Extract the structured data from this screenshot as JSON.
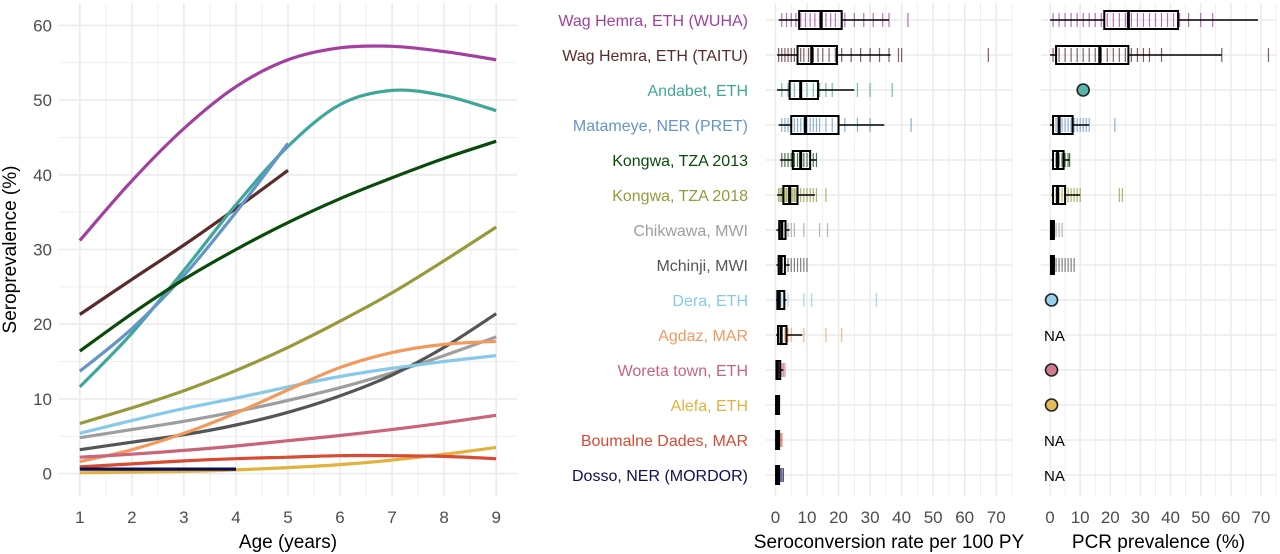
{
  "chart_data": [
    {
      "type": "line",
      "xlabel": "Age (years)",
      "ylabel": "Seroprevalence (%)",
      "xlim": [
        0.6,
        9.4
      ],
      "ylim": [
        -3,
        63
      ],
      "xticks": [
        "1",
        "2",
        "3",
        "4",
        "5",
        "6",
        "7",
        "8",
        "9"
      ],
      "yticks": [
        "0",
        "10",
        "20",
        "30",
        "40",
        "50",
        "60"
      ],
      "grid": true,
      "series": [
        {
          "name": "Wag Hemra, ETH (WUHA)",
          "color": "#a23fa0",
          "x": [
            1,
            2,
            3,
            4,
            5,
            6,
            7,
            8,
            9
          ],
          "y": [
            31.2,
            39.2,
            46.2,
            51.8,
            55.4,
            57.0,
            57.2,
            56.5,
            55.4
          ]
        },
        {
          "name": "Wag Hemra, ETH (TAITU)",
          "color": "#5b2a2a",
          "x": [
            1,
            2,
            3,
            4,
            5
          ],
          "y": [
            21.3,
            26.0,
            30.6,
            35.5,
            40.6
          ]
        },
        {
          "name": "Andabet, ETH",
          "color": "#3fa79a",
          "x": [
            1,
            2,
            3,
            4,
            5,
            6,
            7,
            8,
            9
          ],
          "y": [
            11.6,
            18.8,
            27.2,
            36.0,
            43.8,
            49.4,
            51.3,
            50.6,
            48.6
          ]
        },
        {
          "name": "Matameye, NER (PRET)",
          "color": "#6495c8",
          "x": [
            1,
            2,
            3,
            4,
            5
          ],
          "y": [
            13.7,
            19.4,
            26.5,
            35.0,
            44.2
          ]
        },
        {
          "name": "Kongwa, TZA 2013",
          "color": "#0a4a0a",
          "x": [
            1,
            2,
            3,
            4,
            5,
            6,
            7,
            8,
            9
          ],
          "y": [
            16.4,
            21.4,
            26.0,
            30.0,
            33.6,
            36.8,
            39.6,
            42.2,
            44.5
          ]
        },
        {
          "name": "Kongwa, TZA 2018",
          "color": "#97993a",
          "x": [
            1,
            2,
            3,
            4,
            5,
            6,
            7,
            8,
            9
          ],
          "y": [
            6.7,
            8.8,
            11.1,
            13.8,
            16.9,
            20.4,
            24.2,
            28.5,
            33.0
          ]
        },
        {
          "name": "Chikwawa, MWI",
          "color": "#9e9e9e",
          "x": [
            1,
            2,
            3,
            4,
            5,
            6,
            7,
            8,
            9
          ],
          "y": [
            4.8,
            5.9,
            7.0,
            8.3,
            9.8,
            11.5,
            13.5,
            15.8,
            18.3
          ]
        },
        {
          "name": "Mchinji, MWI",
          "color": "#555555",
          "x": [
            1,
            2,
            3,
            4,
            5,
            6,
            7,
            8,
            9
          ],
          "y": [
            3.2,
            4.2,
            5.2,
            6.5,
            8.2,
            10.4,
            13.2,
            16.9,
            21.4
          ]
        },
        {
          "name": "Dera, ETH",
          "color": "#87c9e9",
          "x": [
            1,
            2,
            3,
            4,
            5,
            6,
            7,
            8,
            9
          ],
          "y": [
            5.4,
            7.1,
            8.7,
            10.1,
            11.6,
            13.0,
            14.1,
            15.0,
            15.8
          ]
        },
        {
          "name": "Agdaz, MAR",
          "color": "#f2995e",
          "x": [
            1,
            2,
            3,
            4,
            5,
            6,
            7,
            8,
            9
          ],
          "y": [
            1.6,
            3.2,
            5.4,
            8.1,
            11.2,
            14.2,
            16.2,
            17.3,
            17.7
          ]
        },
        {
          "name": "Woreta town, ETH",
          "color": "#c9647a",
          "x": [
            1,
            2,
            3,
            4,
            5,
            6,
            7,
            8,
            9
          ],
          "y": [
            2.2,
            2.6,
            3.1,
            3.7,
            4.4,
            5.1,
            5.9,
            6.8,
            7.8
          ]
        },
        {
          "name": "Alefa, ETH",
          "color": "#e3b23e",
          "x": [
            1,
            2,
            3,
            4,
            5,
            6,
            7,
            8,
            9
          ],
          "y": [
            0.1,
            0.2,
            0.3,
            0.5,
            0.8,
            1.2,
            1.8,
            2.6,
            3.5
          ]
        },
        {
          "name": "Boumalne Dades, MAR",
          "color": "#d94a32",
          "x": [
            1,
            2,
            3,
            4,
            5,
            6,
            7,
            8,
            9
          ],
          "y": [
            0.9,
            1.3,
            1.7,
            2.0,
            2.2,
            2.4,
            2.4,
            2.3,
            2.0
          ]
        },
        {
          "name": "Dosso, NER (MORDOR)",
          "color": "#0d1052",
          "x": [
            1,
            2,
            3,
            4
          ],
          "y": [
            0.6,
            0.6,
            0.6,
            0.6
          ]
        }
      ]
    },
    {
      "type": "box",
      "xlabel": "Seroconversion rate per 100 PY",
      "xlim": [
        -3,
        75
      ],
      "xticks": [
        "0",
        "10",
        "20",
        "30",
        "40",
        "50",
        "60",
        "70"
      ],
      "grid": true,
      "categories": [
        "Wag Hemra, ETH (WUHA)",
        "Wag Hemra, ETH (TAITU)",
        "Andabet, ETH",
        "Matameye, NER (PRET)",
        "Kongwa, TZA 2013",
        "Kongwa, TZA 2018",
        "Chikwawa, MWI",
        "Mchinji, MWI",
        "Dera, ETH",
        "Agdaz, MAR",
        "Woreta town, ETH",
        "Alefa, ETH",
        "Boumalne Dades, MAR",
        "Dosso, NER (MORDOR)"
      ],
      "colors": [
        "#a23fa0",
        "#5b2a2a",
        "#3fa79a",
        "#6495c8",
        "#0a4a0a",
        "#97993a",
        "#9e9e9e",
        "#555555",
        "#87c9e9",
        "#f2995e",
        "#c9647a",
        "#e3b23e",
        "#d94a32",
        "#0d1052"
      ],
      "boxes": [
        {
          "min": 1,
          "q1": 7.5,
          "median": 14.5,
          "q3": 21,
          "max": 36,
          "ticks": [
            2,
            3.5,
            5,
            6.5,
            8,
            9.5,
            11,
            12.5,
            14,
            16,
            17.5,
            19,
            22,
            25,
            28,
            31,
            34,
            36,
            42
          ]
        },
        {
          "min": 0.5,
          "q1": 7,
          "median": 11.5,
          "q3": 19.5,
          "max": 36.5,
          "ticks": [
            1,
            2,
            3,
            4,
            5,
            6,
            7,
            8,
            9,
            10.5,
            12,
            13.5,
            15,
            17,
            19,
            21,
            24,
            27,
            30,
            33,
            36,
            39,
            40,
            67.5
          ]
        },
        {
          "min": 0.5,
          "q1": 4.5,
          "median": 8,
          "q3": 13.5,
          "max": 25,
          "ticks": [
            2,
            4,
            6,
            8,
            10,
            12,
            14,
            16,
            18,
            26,
            30,
            37
          ]
        },
        {
          "min": 1,
          "q1": 5,
          "median": 9.5,
          "q3": 20,
          "max": 34.5,
          "ticks": [
            2,
            3,
            4,
            5,
            6,
            7,
            8,
            9,
            10,
            11,
            12,
            13,
            14,
            16,
            18,
            20,
            22,
            26,
            30,
            43
          ]
        },
        {
          "min": 1.5,
          "q1": 5.5,
          "median": 8,
          "q3": 11,
          "max": 13,
          "ticks": [
            2,
            3,
            4,
            5,
            6,
            7,
            8,
            9,
            10,
            11,
            12,
            13
          ]
        },
        {
          "min": 0.5,
          "q1": 2.5,
          "median": 4.5,
          "q3": 7,
          "max": 12.5,
          "ticks": [
            1,
            1.5,
            2,
            2.5,
            3,
            3.5,
            4,
            4.5,
            5,
            5.5,
            6,
            6.5,
            7,
            8,
            9,
            10,
            11,
            12,
            13,
            16
          ]
        },
        {
          "min": 0.3,
          "q1": 1.2,
          "median": 2,
          "q3": 3.2,
          "max": 4.5,
          "ticks": [
            1,
            2,
            3,
            4,
            5,
            6,
            9,
            14,
            16.5
          ]
        },
        {
          "min": 0.3,
          "q1": 1,
          "median": 1.8,
          "q3": 3,
          "max": 4.5,
          "ticks": [
            1,
            2,
            3,
            4,
            5,
            6,
            7,
            8,
            9,
            10
          ]
        },
        {
          "min": 0.2,
          "q1": 0.6,
          "median": 1.2,
          "q3": 2.8,
          "max": 3.5,
          "ticks": [
            1,
            2,
            3,
            4,
            9,
            11.5,
            32
          ]
        },
        {
          "min": 0.2,
          "q1": 0.8,
          "median": 1.8,
          "q3": 3.5,
          "max": 8.5,
          "ticks": [
            1,
            2,
            3,
            4,
            5,
            9,
            16,
            21
          ]
        },
        {
          "min": 0.1,
          "q1": 0.3,
          "median": 0.6,
          "q3": 1.5,
          "max": 2.5,
          "ticks": [
            1,
            1.5,
            2,
            2.5,
            3
          ]
        },
        {
          "min": 0.1,
          "q1": 0.2,
          "median": 0.4,
          "q3": 0.8,
          "max": 1.2,
          "ticks": [
            0.5,
            1
          ]
        },
        {
          "min": 0.1,
          "q1": 0.2,
          "median": 0.5,
          "q3": 1,
          "max": 1.5,
          "ticks": [
            1,
            1.5,
            2
          ]
        },
        {
          "min": 0.1,
          "q1": 0.2,
          "median": 0.4,
          "q3": 0.8,
          "max": 1.2,
          "ticks": [
            1,
            1.5,
            2,
            2.5
          ]
        }
      ]
    },
    {
      "type": "box",
      "xlabel": "PCR prevalence (%)",
      "xlim": [
        -3,
        75
      ],
      "xticks": [
        "0",
        "10",
        "20",
        "30",
        "40",
        "50",
        "60",
        "70"
      ],
      "grid": true,
      "categories": [
        "Wag Hemra, ETH (WUHA)",
        "Wag Hemra, ETH (TAITU)",
        "Andabet, ETH",
        "Matameye, NER (PRET)",
        "Kongwa, TZA 2013",
        "Kongwa, TZA 2018",
        "Chikwawa, MWI",
        "Mchinji, MWI",
        "Dera, ETH",
        "Agdaz, MAR",
        "Woreta town, ETH",
        "Alefa, ETH",
        "Boumalne Dades, MAR",
        "Dosso, NER (MORDOR)"
      ],
      "rows": [
        {
          "kind": "box",
          "min": 0,
          "q1": 18,
          "median": 26,
          "q3": 42.5,
          "max": 69,
          "ticks": [
            1,
            3,
            5,
            7,
            9,
            11,
            13,
            15,
            17,
            19,
            21,
            23,
            25,
            27,
            29,
            31,
            33,
            35,
            37,
            39,
            41,
            43,
            46,
            50,
            54
          ]
        },
        {
          "kind": "box",
          "min": 0,
          "q1": 2,
          "median": 16.5,
          "q3": 26,
          "max": 57,
          "ticks": [
            1,
            3,
            5,
            7,
            9,
            11,
            13,
            15,
            17,
            19,
            21,
            23,
            25,
            27,
            29,
            31,
            33,
            37,
            57,
            72.5
          ]
        },
        {
          "kind": "point",
          "value": 11
        },
        {
          "kind": "box",
          "min": 0,
          "q1": 1,
          "median": 3,
          "q3": 7.5,
          "max": 13,
          "ticks": [
            1,
            2,
            3,
            4,
            5,
            6,
            7,
            8,
            9,
            10,
            11,
            12,
            13,
            21.5
          ]
        },
        {
          "kind": "box",
          "min": 0.5,
          "q1": 1,
          "median": 2.5,
          "q3": 4.5,
          "max": 6.5,
          "ticks": [
            1,
            2,
            3,
            4,
            5,
            6,
            6.5
          ]
        },
        {
          "kind": "box",
          "min": 0.5,
          "q1": 1,
          "median": 2.5,
          "q3": 5,
          "max": 10,
          "ticks": [
            1,
            2,
            3,
            4,
            5,
            6,
            7,
            8,
            9,
            10,
            23,
            24
          ]
        },
        {
          "kind": "box",
          "min": 0.1,
          "q1": 0.3,
          "median": 0.6,
          "q3": 1,
          "max": 1.5,
          "ticks": [
            1,
            2,
            3,
            4
          ]
        },
        {
          "kind": "box",
          "min": 0.1,
          "q1": 0.3,
          "median": 0.6,
          "q3": 1,
          "max": 1.5,
          "ticks": [
            1,
            2,
            3,
            4,
            5,
            6,
            7,
            8
          ]
        },
        {
          "kind": "point",
          "value": 0.5
        },
        {
          "kind": "na",
          "label": "NA"
        },
        {
          "kind": "point",
          "value": 0.5
        },
        {
          "kind": "point",
          "value": 0.5
        },
        {
          "kind": "na",
          "label": "NA"
        },
        {
          "kind": "na",
          "label": "NA"
        }
      ]
    }
  ]
}
